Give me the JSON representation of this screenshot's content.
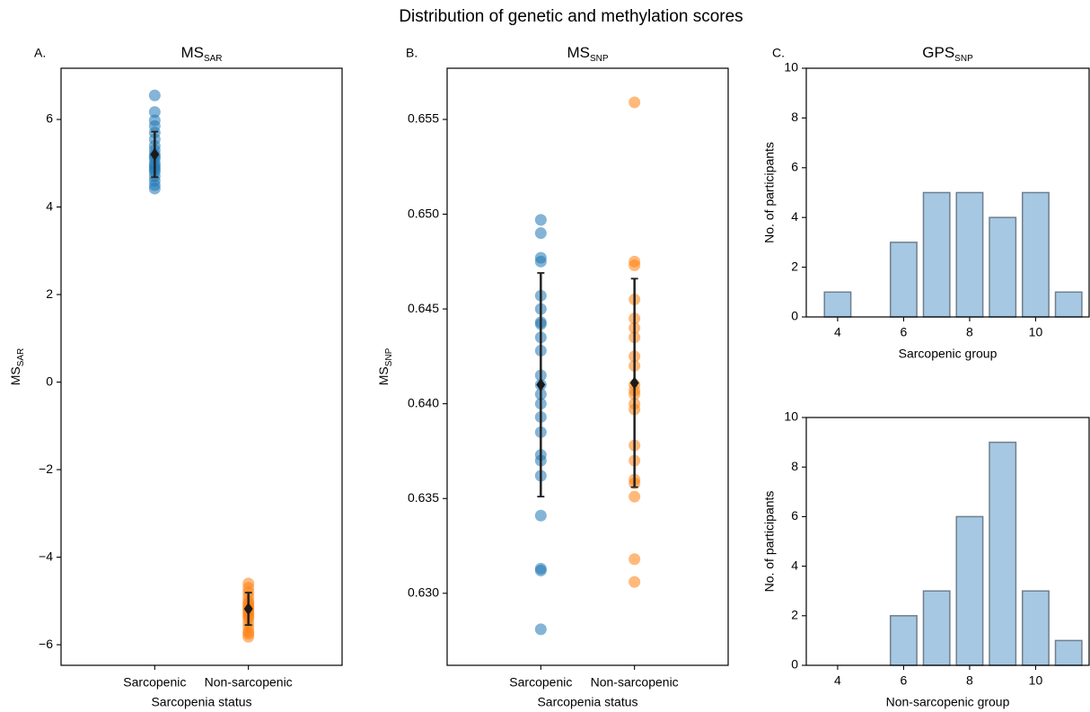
{
  "title": "Distribution of genetic and methylation scores",
  "chart_data": [
    {
      "type": "scatter",
      "panel_label": "A.",
      "title": {
        "text": "MS",
        "sub": "SAR"
      },
      "ylabel": {
        "text": "MS",
        "sub": "SAR"
      },
      "xlabel": "Sarcopenia status",
      "categories": [
        "Sarcopenic",
        "Non-sarcopenic"
      ],
      "xlim": [
        0,
        3
      ],
      "ylim": [
        -6.47,
        7.17
      ],
      "yticks": [
        {
          "value": -6,
          "label": "−6"
        },
        {
          "value": -4,
          "label": "−4"
        },
        {
          "value": -2,
          "label": "−2"
        },
        0,
        2,
        4,
        6
      ],
      "series": [
        {
          "color": "#1f77b4",
          "values": [
            6.55,
            6.17,
            5.98,
            5.85,
            5.7,
            5.55,
            5.4,
            5.3,
            5.2,
            5.15,
            5.1,
            5.0,
            4.95,
            4.9,
            4.85,
            4.8,
            4.7,
            4.6,
            4.5,
            4.42
          ],
          "mean": 5.2,
          "error": 0.52
        },
        {
          "color": "#ff7f0e",
          "values": [
            -4.6,
            -4.7,
            -4.8,
            -4.9,
            -5.0,
            -5.05,
            -5.1,
            -5.15,
            -5.2,
            -5.25,
            -5.3,
            -5.35,
            -5.4,
            -5.5,
            -5.6,
            -5.7,
            -5.75,
            -5.82
          ],
          "mean": -5.18,
          "error": 0.37
        }
      ]
    },
    {
      "type": "scatter",
      "panel_label": "B.",
      "title": {
        "text": "MS",
        "sub": "SNP"
      },
      "ylabel": {
        "text": "MS",
        "sub": "SNP"
      },
      "xlabel": "Sarcopenia status",
      "categories": [
        "Sarcopenic",
        "Non-sarcopenic"
      ],
      "xlim": [
        0,
        3
      ],
      "ylim": [
        0.6262,
        0.6577
      ],
      "yticks": [
        {
          "value": 0.63,
          "label": "0.630"
        },
        0.635,
        {
          "value": 0.64,
          "label": "0.640"
        },
        0.645,
        {
          "value": 0.65,
          "label": "0.650"
        },
        0.655
      ],
      "series": [
        {
          "color": "#1f77b4",
          "values": [
            0.6497,
            0.649,
            0.6477,
            0.6475,
            0.6457,
            0.645,
            0.6443,
            0.6442,
            0.6435,
            0.6428,
            0.6415,
            0.641,
            0.6405,
            0.64,
            0.6393,
            0.6385,
            0.6373,
            0.637,
            0.6362,
            0.6341,
            0.6313,
            0.6312,
            0.6281
          ],
          "mean": 0.641,
          "error": 0.0059
        },
        {
          "color": "#ff7f0e",
          "values": [
            0.6559,
            0.6475,
            0.6473,
            0.6455,
            0.6445,
            0.644,
            0.6435,
            0.6425,
            0.642,
            0.641,
            0.6407,
            0.6405,
            0.64,
            0.6397,
            0.6378,
            0.637,
            0.636,
            0.6358,
            0.6351,
            0.6318,
            0.6306
          ],
          "mean": 0.6411,
          "error": 0.0055
        }
      ]
    },
    {
      "type": "bar",
      "panel_label": "C.",
      "title": {
        "text": "GPS",
        "sub": "SNP"
      },
      "ylabel": "No. of participants",
      "xlabel": "Sarcopenic group",
      "x": [
        4,
        5,
        6,
        7,
        8,
        9,
        10,
        11
      ],
      "values": [
        1,
        0,
        3,
        5,
        5,
        4,
        5,
        1
      ],
      "color": "#a6c8e2",
      "edgecolor": "#6f7f8f",
      "xlim": [
        3.05,
        11.62
      ],
      "xticks": [
        4,
        6,
        8,
        10
      ],
      "ylim": [
        0,
        10
      ],
      "yticks": [
        0,
        2,
        4,
        6,
        8,
        10
      ]
    },
    {
      "type": "bar",
      "ylabel": "No. of participants",
      "xlabel": "Non-sarcopenic group",
      "x": [
        4,
        5,
        6,
        7,
        8,
        9,
        10,
        11
      ],
      "values": [
        0,
        0,
        2,
        3,
        6,
        9,
        3,
        1
      ],
      "color": "#a6c8e2",
      "edgecolor": "#6f7f8f",
      "xlim": [
        3.05,
        11.62
      ],
      "xticks": [
        4,
        6,
        8,
        10
      ],
      "ylim": [
        0,
        10
      ],
      "yticks": [
        0,
        2,
        4,
        6,
        8,
        10
      ]
    }
  ]
}
